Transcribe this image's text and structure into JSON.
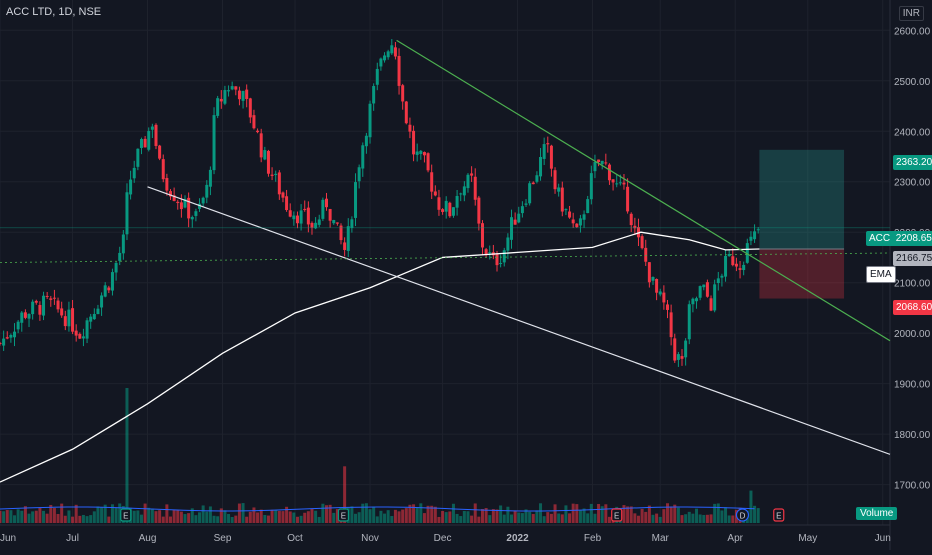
{
  "legend": {
    "title": "ACC LTD, 1D, NSE"
  },
  "currency": "INR",
  "volume_label": "Volume",
  "price_tags": {
    "target": "2363.20",
    "last_symbol": "ACC",
    "last_price": "2208.65",
    "ema_value": "2166.75",
    "ema_label": "EMA",
    "stop": "2068.60"
  },
  "colors": {
    "background": "#131722",
    "up": "#089981",
    "down": "#f23645",
    "ema": "#ffffff",
    "trendline_upper": "#4caf50",
    "trendline_lower": "#e0e3eb",
    "target_zone": "#26a69a",
    "stop_zone": "#f23645",
    "grid": "#1e222d"
  },
  "chart_data": {
    "type": "candlestick",
    "title": "ACC LTD, 1D, NSE",
    "y_range": [
      1620,
      2660
    ],
    "y_ticks": [
      1700,
      1800,
      1900,
      2000,
      2100,
      2200,
      2300,
      2400,
      2500,
      2600
    ],
    "x_ticks": [
      "Jun",
      "Jul",
      "Aug",
      "Sep",
      "Oct",
      "Nov",
      "Dec",
      "2022",
      "Feb",
      "Mar",
      "Apr",
      "May",
      "Jun"
    ],
    "x_tick_days": [
      0,
      30,
      61,
      92,
      122,
      153,
      183,
      214,
      245,
      273,
      304,
      334,
      365
    ],
    "x_range_days": [
      0,
      368
    ],
    "close_series": [
      {
        "d": 0,
        "v": 1980
      },
      {
        "d": 10,
        "v": 2040
      },
      {
        "d": 20,
        "v": 2060
      },
      {
        "d": 28,
        "v": 2030
      },
      {
        "d": 33,
        "v": 2000
      },
      {
        "d": 40,
        "v": 2060
      },
      {
        "d": 46,
        "v": 2110
      },
      {
        "d": 51,
        "v": 2180
      },
      {
        "d": 53,
        "v": 2290
      },
      {
        "d": 56,
        "v": 2340
      },
      {
        "d": 60,
        "v": 2380
      },
      {
        "d": 63,
        "v": 2420
      },
      {
        "d": 66,
        "v": 2330
      },
      {
        "d": 70,
        "v": 2290
      },
      {
        "d": 76,
        "v": 2250
      },
      {
        "d": 81,
        "v": 2230
      },
      {
        "d": 86,
        "v": 2290
      },
      {
        "d": 89,
        "v": 2440
      },
      {
        "d": 94,
        "v": 2490
      },
      {
        "d": 99,
        "v": 2480
      },
      {
        "d": 104,
        "v": 2430
      },
      {
        "d": 109,
        "v": 2350
      },
      {
        "d": 115,
        "v": 2290
      },
      {
        "d": 119,
        "v": 2250
      },
      {
        "d": 125,
        "v": 2230
      },
      {
        "d": 130,
        "v": 2210
      },
      {
        "d": 135,
        "v": 2260
      },
      {
        "d": 140,
        "v": 2190
      },
      {
        "d": 143,
        "v": 2160
      },
      {
        "d": 148,
        "v": 2330
      },
      {
        "d": 151,
        "v": 2400
      },
      {
        "d": 156,
        "v": 2510
      },
      {
        "d": 160,
        "v": 2570
      },
      {
        "d": 163,
        "v": 2580
      },
      {
        "d": 166,
        "v": 2470
      },
      {
        "d": 171,
        "v": 2360
      },
      {
        "d": 176,
        "v": 2330
      },
      {
        "d": 181,
        "v": 2260
      },
      {
        "d": 186,
        "v": 2240
      },
      {
        "d": 190,
        "v": 2290
      },
      {
        "d": 195,
        "v": 2300
      },
      {
        "d": 199,
        "v": 2180
      },
      {
        "d": 204,
        "v": 2140
      },
      {
        "d": 208,
        "v": 2160
      },
      {
        "d": 212,
        "v": 2220
      },
      {
        "d": 217,
        "v": 2270
      },
      {
        "d": 221,
        "v": 2310
      },
      {
        "d": 226,
        "v": 2370
      },
      {
        "d": 230,
        "v": 2280
      },
      {
        "d": 235,
        "v": 2230
      },
      {
        "d": 239,
        "v": 2190
      },
      {
        "d": 243,
        "v": 2280
      },
      {
        "d": 247,
        "v": 2340
      },
      {
        "d": 251,
        "v": 2330
      },
      {
        "d": 255,
        "v": 2290
      },
      {
        "d": 259,
        "v": 2270
      },
      {
        "d": 263,
        "v": 2190
      },
      {
        "d": 267,
        "v": 2140
      },
      {
        "d": 271,
        "v": 2080
      },
      {
        "d": 275,
        "v": 2050
      },
      {
        "d": 279,
        "v": 1960
      },
      {
        "d": 282,
        "v": 1940
      },
      {
        "d": 285,
        "v": 2040
      },
      {
        "d": 290,
        "v": 2090
      },
      {
        "d": 294,
        "v": 2060
      },
      {
        "d": 298,
        "v": 2120
      },
      {
        "d": 302,
        "v": 2150
      },
      {
        "d": 306,
        "v": 2140
      },
      {
        "d": 309,
        "v": 2170
      },
      {
        "d": 312,
        "v": 2190
      },
      {
        "d": 314,
        "v": 2208.65
      }
    ],
    "ema_series": [
      {
        "d": 0,
        "v": 1705
      },
      {
        "d": 30,
        "v": 1770
      },
      {
        "d": 61,
        "v": 1860
      },
      {
        "d": 92,
        "v": 1960
      },
      {
        "d": 122,
        "v": 2040
      },
      {
        "d": 153,
        "v": 2090
      },
      {
        "d": 183,
        "v": 2150
      },
      {
        "d": 214,
        "v": 2160
      },
      {
        "d": 245,
        "v": 2170
      },
      {
        "d": 265,
        "v": 2200
      },
      {
        "d": 285,
        "v": 2185
      },
      {
        "d": 300,
        "v": 2165
      },
      {
        "d": 314,
        "v": 2166.75
      }
    ],
    "trendlines": [
      {
        "name": "upper",
        "from": {
          "d": 164,
          "v": 2580
        },
        "to": {
          "d": 368,
          "v": 1985
        }
      },
      {
        "name": "lower",
        "from": {
          "d": 61,
          "v": 2290
        },
        "to": {
          "d": 368,
          "v": 1760
        }
      }
    ],
    "long_position": {
      "start_d": 314,
      "end_d": 349,
      "entry": 2166.75,
      "target": 2363.2,
      "stop": 2068.6
    },
    "last_price": 2208.65,
    "ema_value": 2166.75,
    "volume": {
      "label": "Volume",
      "spikes": [
        {
          "d": 53,
          "v": 1.0
        },
        {
          "d": 142,
          "v": 0.42
        },
        {
          "d": 311,
          "v": 0.24
        }
      ]
    },
    "event_markers": [
      {
        "d": 52,
        "label": "E"
      },
      {
        "d": 142,
        "label": "E"
      },
      {
        "d": 255,
        "label": "E"
      },
      {
        "d": 307,
        "label": "D"
      },
      {
        "d": 322,
        "label": "E"
      }
    ]
  }
}
